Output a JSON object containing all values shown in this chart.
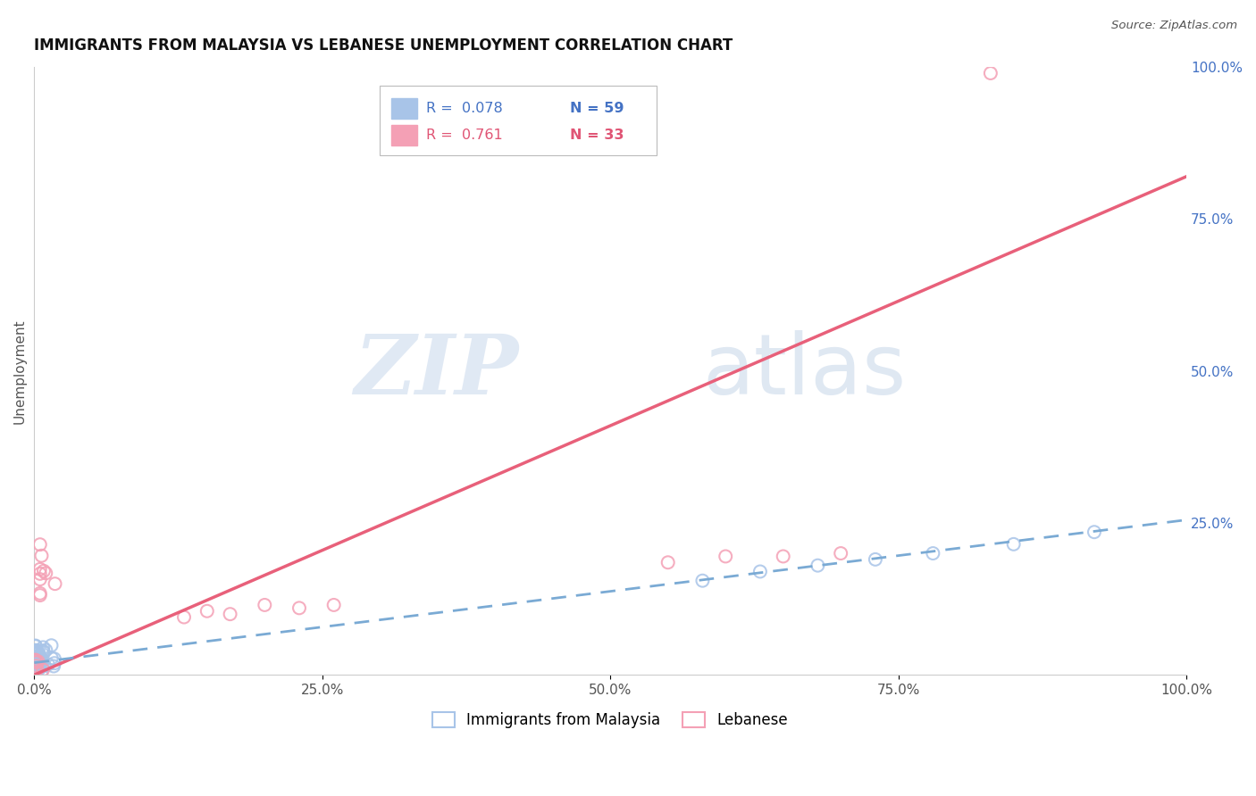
{
  "title": "IMMIGRANTS FROM MALAYSIA VS LEBANESE UNEMPLOYMENT CORRELATION CHART",
  "source": "Source: ZipAtlas.com",
  "ylabel": "Unemployment",
  "xlim": [
    0,
    1
  ],
  "ylim": [
    0,
    1
  ],
  "xtick_labels": [
    "0.0%",
    "25.0%",
    "50.0%",
    "75.0%",
    "100.0%"
  ],
  "xtick_vals": [
    0,
    0.25,
    0.5,
    0.75,
    1.0
  ],
  "ytick_labels": [
    "25.0%",
    "50.0%",
    "75.0%",
    "100.0%"
  ],
  "ytick_vals": [
    0.25,
    0.5,
    0.75,
    1.0
  ],
  "blue_scatter_color": "#a8c4e8",
  "pink_scatter_color": "#f4a0b5",
  "blue_line_color": "#7aaad4",
  "pink_line_color": "#e8607a",
  "legend_r_blue_color": "#4472c4",
  "legend_r_pink_color": "#e05575",
  "legend_n_blue_color": "#4472c4",
  "legend_n_pink_color": "#e05575",
  "right_axis_color": "#4472c4",
  "grid_color": "#d8d8d8",
  "background_color": "#ffffff",
  "legend_blue_r": "R =  0.078",
  "legend_blue_n": "N = 59",
  "legend_pink_r": "R =  0.761",
  "legend_pink_n": "N = 33",
  "blue_n": 59,
  "pink_n": 33,
  "pink_line_x0": 0.0,
  "pink_line_y0": 0.0,
  "pink_line_x1": 1.0,
  "pink_line_y1": 0.82,
  "blue_line_x0": 0.0,
  "blue_line_y0": 0.02,
  "blue_line_x1": 1.0,
  "blue_line_y1": 0.255
}
